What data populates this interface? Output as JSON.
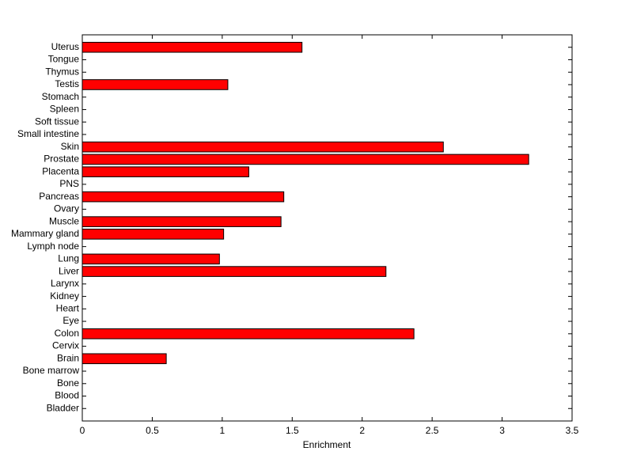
{
  "chart_data": {
    "type": "barh",
    "x_label": "Enrichment",
    "categories": [
      "Bladder",
      "Blood",
      "Bone",
      "Bone marrow",
      "Brain",
      "Cervix",
      "Colon",
      "Eye",
      "Heart",
      "Kidney",
      "Larynx",
      "Liver",
      "Lung",
      "Lymph node",
      "Mammary gland",
      "Muscle",
      "Ovary",
      "Pancreas",
      "PNS",
      "Placenta",
      "Prostate",
      "Skin",
      "Small intestine",
      "Soft tissue",
      "Spleen",
      "Stomach",
      "Testis",
      "Thymus",
      "Tongue",
      "Uterus"
    ],
    "values": [
      0,
      0,
      0,
      0,
      0.6,
      0,
      2.37,
      0,
      0,
      0,
      0,
      2.17,
      0.98,
      0,
      1.01,
      1.42,
      0,
      1.44,
      0,
      1.19,
      3.19,
      2.58,
      0,
      0,
      0,
      0,
      1.04,
      0,
      0,
      1.57
    ],
    "color": "#ff0000",
    "xlim": [
      0,
      3.5
    ],
    "xticks": [
      0,
      0.5,
      1,
      1.5,
      2,
      2.5,
      3,
      3.5
    ],
    "grid": false
  }
}
